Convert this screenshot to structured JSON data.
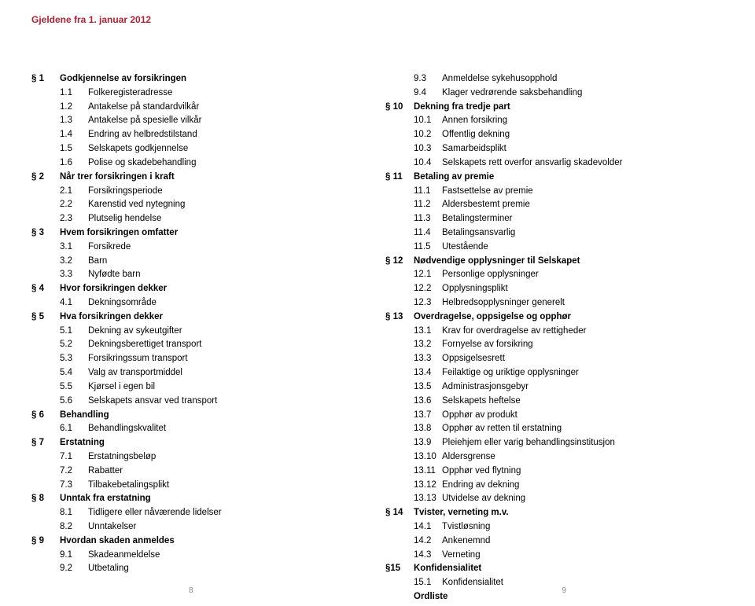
{
  "header": "Gjeldene fra 1. januar 2012",
  "pageLeft": "8",
  "pageRight": "9",
  "leftColumn": [
    {
      "type": "section",
      "num": "§ 1",
      "title": "Godkjennelse av forsikringen",
      "items": [
        {
          "num": "1.1",
          "text": "Folkeregisteradresse"
        },
        {
          "num": "1.2",
          "text": "Antakelse på standardvilkår"
        },
        {
          "num": "1.3",
          "text": "Antakelse på spesielle vilkår"
        },
        {
          "num": "1.4",
          "text": "Endring av helbredstilstand"
        },
        {
          "num": "1.5",
          "text": "Selskapets godkjennelse"
        },
        {
          "num": "1.6",
          "text": "Polise og skadebehandling"
        }
      ]
    },
    {
      "type": "section",
      "num": "§ 2",
      "title": "Når trer forsikringen i kraft",
      "items": [
        {
          "num": "2.1",
          "text": "Forsikringsperiode"
        },
        {
          "num": "2.2",
          "text": "Karenstid ved nytegning"
        },
        {
          "num": "2.3",
          "text": "Plutselig hendelse"
        }
      ]
    },
    {
      "type": "section",
      "num": "§ 3",
      "title": "Hvem forsikringen omfatter",
      "items": [
        {
          "num": "3.1",
          "text": "Forsikrede"
        },
        {
          "num": "3.2",
          "text": "Barn"
        },
        {
          "num": "3.3",
          "text": "Nyfødte barn"
        }
      ]
    },
    {
      "type": "section",
      "num": "§ 4",
      "title": "Hvor forsikringen dekker",
      "items": [
        {
          "num": "4.1",
          "text": "Dekningsområde"
        }
      ]
    },
    {
      "type": "section",
      "num": "§ 5",
      "title": "Hva forsikringen dekker",
      "items": [
        {
          "num": "5.1",
          "text": "Dekning av sykeutgifter"
        },
        {
          "num": "5.2",
          "text": "Dekningsberettiget transport"
        },
        {
          "num": "5.3",
          "text": "Forsikringssum transport"
        },
        {
          "num": "5.4",
          "text": "Valg av transportmiddel"
        },
        {
          "num": "5.5",
          "text": "Kjørsel i egen bil"
        },
        {
          "num": "5.6",
          "text": "Selskapets ansvar ved transport"
        }
      ]
    },
    {
      "type": "section",
      "num": "§ 6",
      "title": "Behandling",
      "items": [
        {
          "num": "6.1",
          "text": "Behandlingskvalitet"
        }
      ]
    },
    {
      "type": "section",
      "num": "§ 7",
      "title": "Erstatning",
      "items": [
        {
          "num": "7.1",
          "text": "Erstatningsbeløp"
        },
        {
          "num": "7.2",
          "text": "Rabatter"
        },
        {
          "num": "7.3",
          "text": "Tilbakebetalingsplikt"
        }
      ]
    },
    {
      "type": "section",
      "num": "§ 8",
      "title": "Unntak fra erstatning",
      "items": [
        {
          "num": "8.1",
          "text": "Tidligere eller nåværende lidelser"
        },
        {
          "num": "8.2",
          "text": "Unntakelser"
        }
      ]
    },
    {
      "type": "section",
      "num": "§ 9",
      "title": "Hvordan skaden anmeldes",
      "items": [
        {
          "num": "9.1",
          "text": "Skadeanmeldelse"
        },
        {
          "num": "9.2",
          "text": "Utbetaling"
        }
      ]
    }
  ],
  "rightColumn": [
    {
      "type": "loose",
      "items": [
        {
          "num": "9.3",
          "text": "Anmeldelse sykehusopphold"
        },
        {
          "num": "9.4",
          "text": "Klager vedrørende saksbehandling"
        }
      ]
    },
    {
      "type": "section",
      "num": "§ 10",
      "title": "Dekning fra tredje part",
      "items": [
        {
          "num": "10.1",
          "text": "Annen forsikring"
        },
        {
          "num": "10.2",
          "text": "Offentlig dekning"
        },
        {
          "num": "10.3",
          "text": "Samarbeidsplikt"
        },
        {
          "num": "10.4",
          "text": "Selskapets rett overfor ansvarlig skadevolder"
        }
      ]
    },
    {
      "type": "section",
      "num": "§ 11",
      "title": "Betaling av premie",
      "items": [
        {
          "num": "11.1",
          "text": "Fastsettelse av premie"
        },
        {
          "num": "11.2",
          "text": "Aldersbestemt premie"
        },
        {
          "num": "11.3",
          "text": "Betalingsterminer"
        },
        {
          "num": "11.4",
          "text": "Betalingsansvarlig"
        },
        {
          "num": "11.5",
          "text": "Utestående"
        }
      ]
    },
    {
      "type": "section",
      "num": "§ 12",
      "title": "Nødvendige opplysninger til Selskapet",
      "items": [
        {
          "num": "12.1",
          "text": "Personlige opplysninger"
        },
        {
          "num": "12.2",
          "text": "Opplysningsplikt"
        },
        {
          "num": "12.3",
          "text": "Helbredsopplysninger generelt"
        }
      ]
    },
    {
      "type": "section",
      "num": "§ 13",
      "title": "Overdragelse, oppsigelse og opphør",
      "items": [
        {
          "num": "13.1",
          "text": "Krav for overdragelse av rettigheder"
        },
        {
          "num": "13.2",
          "text": "Fornyelse av forsikring"
        },
        {
          "num": "13.3",
          "text": "Oppsigelsesrett"
        },
        {
          "num": "13.4",
          "text": "Feilaktige og uriktige opplysninger"
        },
        {
          "num": "13.5",
          "text": "Administrasjonsgebyr"
        },
        {
          "num": "13.6",
          "text": "Selskapets heftelse"
        },
        {
          "num": "13.7",
          "text": "Opphør av produkt"
        },
        {
          "num": "13.8",
          "text": "Opphør av retten til erstatning"
        },
        {
          "num": "13.9",
          "text": "Pleiehjem eller varig behandlingsinstitusjon"
        },
        {
          "num": "13.10",
          "text": "Aldersgrense"
        },
        {
          "num": "13.11",
          "text": "Opphør ved flytning"
        },
        {
          "num": "13.12",
          "text": "Endring av dekning"
        },
        {
          "num": "13.13",
          "text": "Utvidelse av dekning"
        }
      ]
    },
    {
      "type": "section",
      "num": "§ 14",
      "title": "Tvister, verneting m.v.",
      "items": [
        {
          "num": "14.1",
          "text": "Tvistløsning"
        },
        {
          "num": "14.2",
          "text": "Ankenemnd"
        },
        {
          "num": "14.3",
          "text": "Verneting"
        }
      ]
    },
    {
      "type": "section",
      "num": "§15",
      "title": "Konfidensialitet",
      "items": [
        {
          "num": "15.1",
          "text": "Konfidensialitet"
        }
      ]
    },
    {
      "type": "ordliste",
      "title": "Ordliste"
    }
  ]
}
